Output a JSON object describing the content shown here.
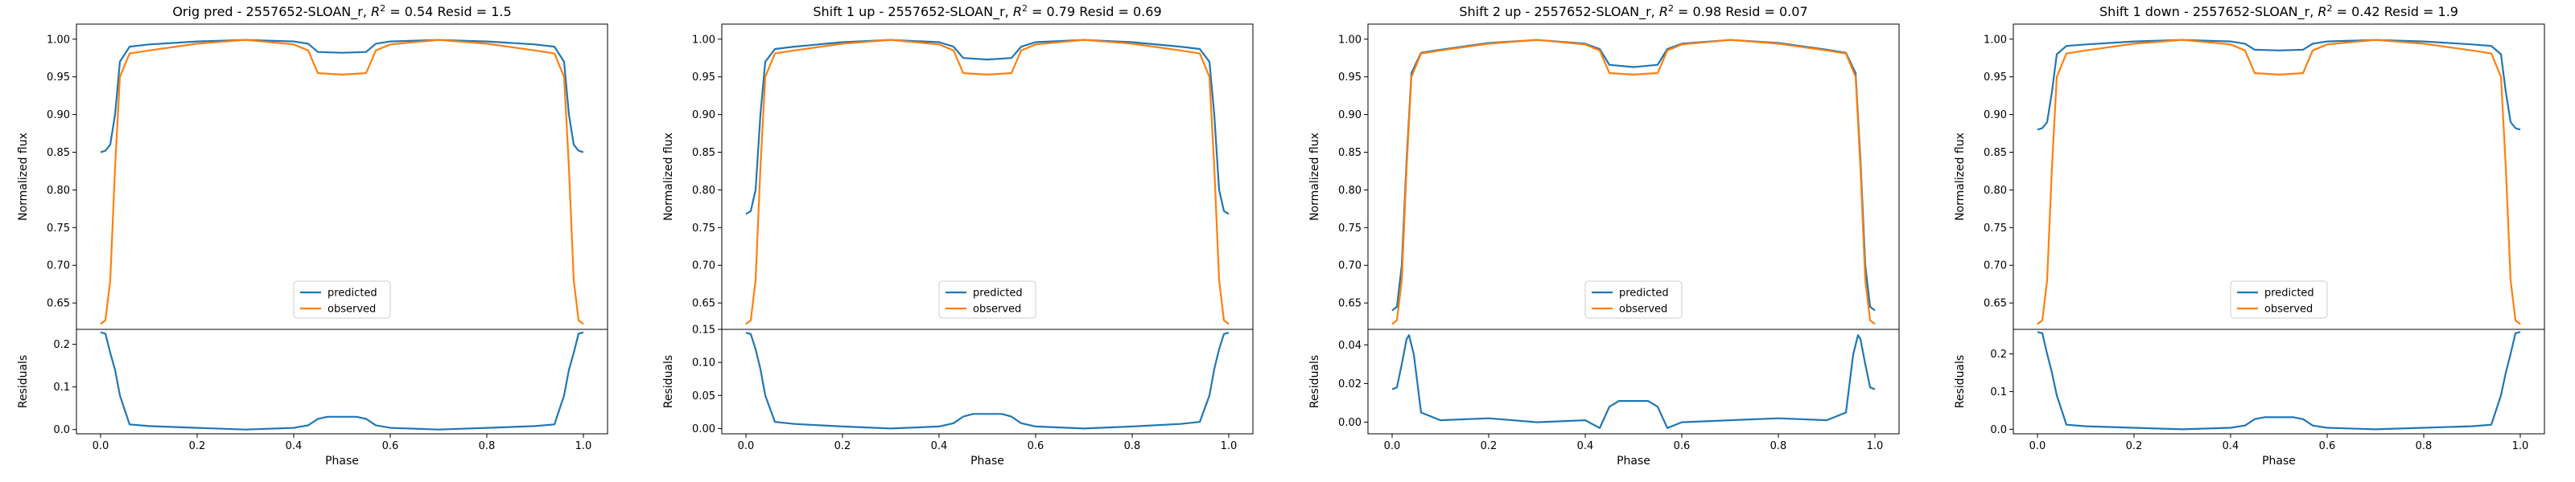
{
  "figure": {
    "colors": {
      "predicted": "#1f77b4",
      "observed": "#ff7f0e"
    },
    "legend_placement": "lower center",
    "grid": false
  },
  "chart_data": [
    {
      "type": "line",
      "title": "Orig pred - 2557652-SLOAN_r, R² = 0.54 Resid = 1.5",
      "title_main": "Orig pred - 2557652-SLOAN_r, ",
      "title_r2": "= 0.54 Resid = 1.5",
      "ylabel": "Normalized flux",
      "res_ylabel": "Residuals",
      "xlabel": "Phase",
      "xlim": [
        -0.05,
        1.05
      ],
      "ylim": [
        0.615,
        1.02
      ],
      "yticks": [
        "0.65",
        "0.70",
        "0.75",
        "0.80",
        "0.85",
        "0.90",
        "0.95",
        "1.00"
      ],
      "res_ylim": [
        -0.01,
        0.235
      ],
      "res_yticks": [
        "0.0",
        "0.1",
        "0.2"
      ],
      "xticks": [
        "0.0",
        "0.2",
        "0.4",
        "0.6",
        "0.8",
        "1.0"
      ],
      "legend": [
        "predicted",
        "observed"
      ],
      "series": [
        {
          "name": "predicted",
          "x": [
            0.0,
            0.01,
            0.02,
            0.03,
            0.04,
            0.06,
            0.1,
            0.2,
            0.3,
            0.4,
            0.43,
            0.45,
            0.5,
            0.55,
            0.57,
            0.6,
            0.7,
            0.8,
            0.9,
            0.94,
            0.96,
            0.97,
            0.98,
            0.99,
            1.0
          ],
          "y": [
            0.85,
            0.852,
            0.86,
            0.9,
            0.97,
            0.99,
            0.993,
            0.997,
            0.999,
            0.997,
            0.994,
            0.983,
            0.982,
            0.983,
            0.994,
            0.997,
            0.999,
            0.997,
            0.993,
            0.99,
            0.97,
            0.9,
            0.86,
            0.852,
            0.85
          ]
        },
        {
          "name": "observed",
          "x": [
            0.0,
            0.01,
            0.02,
            0.03,
            0.04,
            0.06,
            0.1,
            0.2,
            0.3,
            0.4,
            0.43,
            0.45,
            0.5,
            0.55,
            0.57,
            0.6,
            0.7,
            0.8,
            0.9,
            0.94,
            0.96,
            0.97,
            0.98,
            0.99,
            1.0
          ],
          "y": [
            0.622,
            0.627,
            0.68,
            0.83,
            0.95,
            0.981,
            0.985,
            0.994,
            0.999,
            0.993,
            0.985,
            0.955,
            0.953,
            0.955,
            0.985,
            0.993,
            0.999,
            0.994,
            0.985,
            0.981,
            0.95,
            0.83,
            0.68,
            0.627,
            0.622
          ]
        }
      ],
      "residuals": {
        "x": [
          0.0,
          0.01,
          0.02,
          0.03,
          0.04,
          0.06,
          0.1,
          0.2,
          0.3,
          0.4,
          0.43,
          0.45,
          0.47,
          0.5,
          0.53,
          0.55,
          0.57,
          0.6,
          0.7,
          0.8,
          0.9,
          0.94,
          0.96,
          0.97,
          0.98,
          0.99,
          1.0
        ],
        "y": [
          0.228,
          0.225,
          0.18,
          0.14,
          0.08,
          0.012,
          0.008,
          0.004,
          0.0,
          0.004,
          0.01,
          0.025,
          0.03,
          0.03,
          0.03,
          0.025,
          0.01,
          0.004,
          0.0,
          0.004,
          0.008,
          0.012,
          0.08,
          0.14,
          0.18,
          0.225,
          0.228
        ]
      }
    },
    {
      "type": "line",
      "title": "Shift 1 up - 2557652-SLOAN_r, R² = 0.79 Resid = 0.69",
      "title_main": "Shift 1 up - 2557652-SLOAN_r, ",
      "title_r2": "= 0.79 Resid = 0.69",
      "ylabel": "Normalized flux",
      "res_ylabel": "Residuals",
      "xlabel": "Phase",
      "xlim": [
        -0.05,
        1.05
      ],
      "ylim": [
        0.615,
        1.02
      ],
      "yticks": [
        "0.65",
        "0.70",
        "0.75",
        "0.80",
        "0.85",
        "0.90",
        "0.95",
        "1.00"
      ],
      "res_ylim": [
        -0.008,
        0.15
      ],
      "res_yticks": [
        "0.00",
        "0.05",
        "0.10",
        "0.15"
      ],
      "xticks": [
        "0.0",
        "0.2",
        "0.4",
        "0.6",
        "0.8",
        "1.0"
      ],
      "legend": [
        "predicted",
        "observed"
      ],
      "series": [
        {
          "name": "predicted",
          "x": [
            0.0,
            0.01,
            0.02,
            0.03,
            0.04,
            0.06,
            0.1,
            0.2,
            0.3,
            0.4,
            0.43,
            0.45,
            0.5,
            0.55,
            0.57,
            0.6,
            0.7,
            0.8,
            0.9,
            0.94,
            0.96,
            0.97,
            0.98,
            0.99,
            1.0
          ],
          "y": [
            0.768,
            0.772,
            0.8,
            0.9,
            0.97,
            0.987,
            0.99,
            0.996,
            0.999,
            0.996,
            0.99,
            0.975,
            0.973,
            0.975,
            0.99,
            0.996,
            0.999,
            0.996,
            0.99,
            0.987,
            0.97,
            0.9,
            0.8,
            0.772,
            0.768
          ]
        },
        {
          "name": "observed",
          "x": [
            0.0,
            0.01,
            0.02,
            0.03,
            0.04,
            0.06,
            0.1,
            0.2,
            0.3,
            0.4,
            0.43,
            0.45,
            0.5,
            0.55,
            0.57,
            0.6,
            0.7,
            0.8,
            0.9,
            0.94,
            0.96,
            0.97,
            0.98,
            0.99,
            1.0
          ],
          "y": [
            0.622,
            0.627,
            0.68,
            0.83,
            0.95,
            0.981,
            0.985,
            0.994,
            0.999,
            0.993,
            0.985,
            0.955,
            0.953,
            0.955,
            0.985,
            0.993,
            0.999,
            0.994,
            0.985,
            0.981,
            0.95,
            0.83,
            0.68,
            0.627,
            0.622
          ]
        }
      ],
      "residuals": {
        "x": [
          0.0,
          0.01,
          0.02,
          0.03,
          0.04,
          0.06,
          0.1,
          0.2,
          0.3,
          0.4,
          0.43,
          0.45,
          0.47,
          0.5,
          0.53,
          0.55,
          0.57,
          0.6,
          0.7,
          0.8,
          0.9,
          0.94,
          0.96,
          0.97,
          0.98,
          0.99,
          1.0
        ],
        "y": [
          0.145,
          0.143,
          0.12,
          0.09,
          0.05,
          0.01,
          0.007,
          0.003,
          0.0,
          0.003,
          0.008,
          0.018,
          0.022,
          0.022,
          0.022,
          0.018,
          0.008,
          0.003,
          0.0,
          0.003,
          0.007,
          0.01,
          0.05,
          0.09,
          0.12,
          0.143,
          0.145
        ]
      }
    },
    {
      "type": "line",
      "title": "Shift 2 up - 2557652-SLOAN_r, R² = 0.98 Resid = 0.07",
      "title_main": "Shift 2 up - 2557652-SLOAN_r, ",
      "title_r2": "= 0.98 Resid = 0.07",
      "ylabel": "Normalized flux",
      "res_ylabel": "Residuals",
      "xlabel": "Phase",
      "xlim": [
        -0.05,
        1.05
      ],
      "ylim": [
        0.615,
        1.02
      ],
      "yticks": [
        "0.65",
        "0.70",
        "0.75",
        "0.80",
        "0.85",
        "0.90",
        "0.95",
        "1.00"
      ],
      "res_ylim": [
        -0.006,
        0.048
      ],
      "res_yticks": [
        "0.00",
        "0.02",
        "0.04"
      ],
      "xticks": [
        "0.0",
        "0.2",
        "0.4",
        "0.6",
        "0.8",
        "1.0"
      ],
      "legend": [
        "predicted",
        "observed"
      ],
      "series": [
        {
          "name": "predicted",
          "x": [
            0.0,
            0.01,
            0.02,
            0.03,
            0.04,
            0.06,
            0.1,
            0.2,
            0.3,
            0.4,
            0.43,
            0.45,
            0.5,
            0.55,
            0.57,
            0.6,
            0.7,
            0.8,
            0.9,
            0.94,
            0.96,
            0.97,
            0.98,
            0.99,
            1.0
          ],
          "y": [
            0.64,
            0.645,
            0.7,
            0.84,
            0.955,
            0.982,
            0.986,
            0.995,
            0.999,
            0.994,
            0.987,
            0.966,
            0.963,
            0.966,
            0.987,
            0.994,
            0.999,
            0.995,
            0.986,
            0.982,
            0.955,
            0.84,
            0.7,
            0.645,
            0.64
          ]
        },
        {
          "name": "observed",
          "x": [
            0.0,
            0.01,
            0.02,
            0.03,
            0.04,
            0.06,
            0.1,
            0.2,
            0.3,
            0.4,
            0.43,
            0.45,
            0.5,
            0.55,
            0.57,
            0.6,
            0.7,
            0.8,
            0.9,
            0.94,
            0.96,
            0.97,
            0.98,
            0.99,
            1.0
          ],
          "y": [
            0.622,
            0.627,
            0.68,
            0.83,
            0.95,
            0.981,
            0.985,
            0.994,
            0.999,
            0.993,
            0.985,
            0.955,
            0.953,
            0.955,
            0.985,
            0.993,
            0.999,
            0.994,
            0.985,
            0.981,
            0.95,
            0.83,
            0.68,
            0.627,
            0.622
          ]
        }
      ],
      "residuals": {
        "x": [
          0.0,
          0.01,
          0.02,
          0.03,
          0.035,
          0.045,
          0.06,
          0.1,
          0.2,
          0.3,
          0.4,
          0.43,
          0.45,
          0.47,
          0.5,
          0.53,
          0.55,
          0.57,
          0.6,
          0.7,
          0.8,
          0.9,
          0.94,
          0.955,
          0.965,
          0.97,
          0.98,
          0.99,
          1.0
        ],
        "y": [
          0.017,
          0.018,
          0.03,
          0.043,
          0.045,
          0.035,
          0.005,
          0.001,
          0.002,
          0.0,
          0.001,
          -0.003,
          0.008,
          0.011,
          0.011,
          0.011,
          0.008,
          -0.003,
          0.0,
          0.001,
          0.002,
          0.001,
          0.005,
          0.035,
          0.045,
          0.043,
          0.03,
          0.018,
          0.017
        ]
      }
    },
    {
      "type": "line",
      "title": "Shift 1 down - 2557652-SLOAN_r, R² = 0.42 Resid = 1.9",
      "title_main": "Shift 1 down - 2557652-SLOAN_r, ",
      "title_r2": "= 0.42 Resid = 1.9",
      "ylabel": "Normalized flux",
      "res_ylabel": "Residuals",
      "xlabel": "Phase",
      "xlim": [
        -0.05,
        1.05
      ],
      "ylim": [
        0.615,
        1.02
      ],
      "yticks": [
        "0.65",
        "0.70",
        "0.75",
        "0.80",
        "0.85",
        "0.90",
        "0.95",
        "1.00"
      ],
      "res_ylim": [
        -0.012,
        0.265
      ],
      "res_yticks": [
        "0.0",
        "0.1",
        "0.2"
      ],
      "xticks": [
        "0.0",
        "0.2",
        "0.4",
        "0.6",
        "0.8",
        "1.0"
      ],
      "legend": [
        "predicted",
        "observed"
      ],
      "series": [
        {
          "name": "predicted",
          "x": [
            0.0,
            0.01,
            0.02,
            0.03,
            0.04,
            0.06,
            0.1,
            0.2,
            0.3,
            0.4,
            0.43,
            0.45,
            0.5,
            0.55,
            0.57,
            0.6,
            0.7,
            0.8,
            0.9,
            0.94,
            0.96,
            0.97,
            0.98,
            0.99,
            1.0
          ],
          "y": [
            0.88,
            0.882,
            0.89,
            0.93,
            0.98,
            0.991,
            0.993,
            0.997,
            0.999,
            0.997,
            0.994,
            0.986,
            0.985,
            0.986,
            0.994,
            0.997,
            0.999,
            0.997,
            0.993,
            0.991,
            0.98,
            0.93,
            0.89,
            0.882,
            0.88
          ]
        },
        {
          "name": "observed",
          "x": [
            0.0,
            0.01,
            0.02,
            0.03,
            0.04,
            0.06,
            0.1,
            0.2,
            0.3,
            0.4,
            0.43,
            0.45,
            0.5,
            0.55,
            0.57,
            0.6,
            0.7,
            0.8,
            0.9,
            0.94,
            0.96,
            0.97,
            0.98,
            0.99,
            1.0
          ],
          "y": [
            0.622,
            0.627,
            0.68,
            0.83,
            0.95,
            0.981,
            0.985,
            0.994,
            0.999,
            0.993,
            0.985,
            0.955,
            0.953,
            0.955,
            0.985,
            0.993,
            0.999,
            0.994,
            0.985,
            0.981,
            0.95,
            0.83,
            0.68,
            0.627,
            0.622
          ]
        }
      ],
      "residuals": {
        "x": [
          0.0,
          0.01,
          0.02,
          0.03,
          0.04,
          0.06,
          0.1,
          0.2,
          0.3,
          0.4,
          0.43,
          0.45,
          0.47,
          0.5,
          0.53,
          0.55,
          0.57,
          0.6,
          0.7,
          0.8,
          0.9,
          0.94,
          0.96,
          0.97,
          0.98,
          0.99,
          1.0
        ],
        "y": [
          0.258,
          0.255,
          0.2,
          0.15,
          0.09,
          0.012,
          0.008,
          0.004,
          0.0,
          0.004,
          0.01,
          0.027,
          0.032,
          0.032,
          0.032,
          0.027,
          0.01,
          0.004,
          0.0,
          0.004,
          0.008,
          0.012,
          0.09,
          0.15,
          0.2,
          0.255,
          0.258
        ]
      }
    }
  ]
}
